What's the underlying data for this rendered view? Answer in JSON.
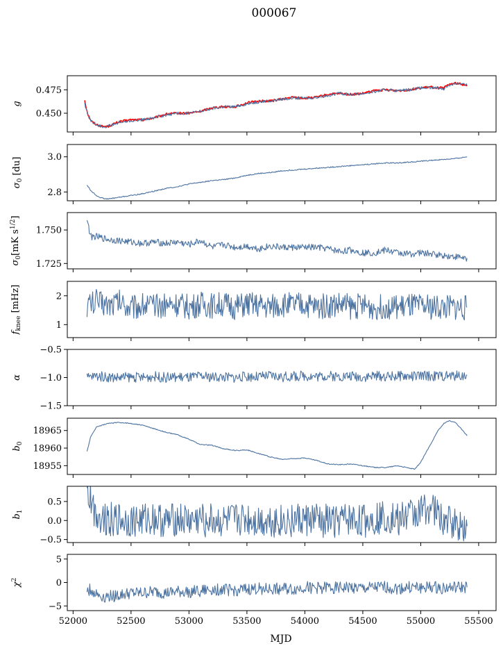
{
  "figure": {
    "title": "000067",
    "xlabel": "MJD"
  },
  "colors": {
    "series": "#4c72a0",
    "fit": "#ff0000",
    "axes": "#000000",
    "background": "#ffffff"
  },
  "chart_data": [
    {
      "type": "line",
      "ylabel": "g",
      "ylabel_sub": "",
      "ylabel_sup": "",
      "ylabel_suffix": "",
      "xlim": [
        51950,
        55650
      ],
      "ylim": [
        0.43,
        0.49
      ],
      "yticks": [
        0.45,
        0.475
      ],
      "ytick_labels": [
        "0.450",
        "0.475"
      ],
      "grid": false,
      "series": [
        {
          "style": "fit",
          "x": [
            52100,
            52115,
            52130,
            52160,
            52200,
            52250,
            52300,
            52400,
            52500,
            52600,
            52700,
            52800,
            52900,
            53000,
            53100,
            53200,
            53300,
            53400,
            53500,
            53600,
            53700,
            53800,
            53900,
            54000,
            54100,
            54200,
            54300,
            54400,
            54500,
            54600,
            54700,
            54800,
            54900,
            55000,
            55100,
            55150,
            55200,
            55250,
            55300,
            55350,
            55400
          ],
          "y": [
            0.464,
            0.455,
            0.448,
            0.441,
            0.438,
            0.436,
            0.436,
            0.441,
            0.443,
            0.443,
            0.445,
            0.449,
            0.45,
            0.45,
            0.452,
            0.456,
            0.457,
            0.457,
            0.461,
            0.463,
            0.463,
            0.465,
            0.467,
            0.466,
            0.467,
            0.47,
            0.471,
            0.47,
            0.471,
            0.474,
            0.475,
            0.474,
            0.475,
            0.477,
            0.478,
            0.477,
            0.477,
            0.481,
            0.482,
            0.481,
            0.48
          ]
        },
        {
          "style": "series",
          "x": [
            52100,
            52130,
            52160,
            52200,
            52250,
            52300,
            52400,
            52500,
            52600,
            52700,
            52800,
            52900,
            53000,
            53100,
            53200,
            53300,
            53400,
            53500,
            53600,
            53700,
            53800,
            53900,
            54000,
            54100,
            54200,
            54300,
            54400,
            54500,
            54600,
            54700,
            54800,
            54900,
            55000,
            55100,
            55150,
            55200,
            55250,
            55300,
            55350,
            55400
          ],
          "y": [
            0.46,
            0.447,
            0.441,
            0.438,
            0.436,
            0.436,
            0.44,
            0.442,
            0.443,
            0.445,
            0.448,
            0.45,
            0.45,
            0.452,
            0.455,
            0.457,
            0.457,
            0.46,
            0.462,
            0.463,
            0.465,
            0.466,
            0.466,
            0.467,
            0.469,
            0.471,
            0.47,
            0.471,
            0.473,
            0.475,
            0.474,
            0.475,
            0.477,
            0.477,
            0.477,
            0.476,
            0.48,
            0.482,
            0.481,
            0.48
          ]
        }
      ]
    },
    {
      "type": "line",
      "ylabel": "σ",
      "ylabel_sub": "0",
      "ylabel_sup": "",
      "ylabel_suffix": " [du]",
      "xlim": [
        51950,
        55650
      ],
      "ylim": [
        2.75,
        3.07
      ],
      "yticks": [
        2.8,
        3.0
      ],
      "ytick_labels": [
        "2.8",
        "3.0"
      ],
      "grid": false,
      "series": [
        {
          "style": "series",
          "x": [
            52120,
            52150,
            52200,
            52250,
            52300,
            52400,
            52500,
            52600,
            52700,
            52800,
            52900,
            53000,
            53100,
            53200,
            53300,
            53400,
            53500,
            53600,
            53700,
            53800,
            53900,
            54000,
            54100,
            54200,
            54300,
            54400,
            54500,
            54600,
            54700,
            54800,
            54900,
            55000,
            55100,
            55200,
            55300,
            55400
          ],
          "y": [
            2.84,
            2.81,
            2.78,
            2.765,
            2.76,
            2.77,
            2.78,
            2.79,
            2.805,
            2.82,
            2.83,
            2.845,
            2.855,
            2.865,
            2.87,
            2.88,
            2.895,
            2.905,
            2.91,
            2.92,
            2.925,
            2.93,
            2.935,
            2.94,
            2.945,
            2.95,
            2.955,
            2.96,
            2.965,
            2.965,
            2.97,
            2.975,
            2.98,
            2.985,
            2.99,
            3.0
          ]
        }
      ]
    },
    {
      "type": "line",
      "ylabel": "σ",
      "ylabel_sub": "0",
      "ylabel_sup": "",
      "ylabel_suffix": "[mK s",
      "ylabel_suffix_sup": "1/2",
      "ylabel_suffix_end": "]",
      "xlim": [
        51950,
        55650
      ],
      "ylim": [
        1.721,
        1.763
      ],
      "yticks": [
        1.725,
        1.75
      ],
      "ytick_labels": [
        "1.725",
        "1.750"
      ],
      "grid": false,
      "series": [
        {
          "style": "series",
          "x": [
            52120,
            52135,
            52150,
            52200,
            52300,
            52400,
            52500,
            52600,
            52700,
            52800,
            52900,
            53000,
            53100,
            53200,
            53300,
            53400,
            53500,
            53600,
            53700,
            53800,
            53900,
            54000,
            54100,
            54200,
            54300,
            54400,
            54500,
            54600,
            54700,
            54800,
            54900,
            55000,
            55100,
            55200,
            55300,
            55400
          ],
          "y": [
            1.759,
            1.752,
            1.745,
            1.745,
            1.743,
            1.742,
            1.741,
            1.74,
            1.741,
            1.74,
            1.741,
            1.739,
            1.742,
            1.737,
            1.739,
            1.737,
            1.738,
            1.736,
            1.738,
            1.737,
            1.737,
            1.737,
            1.737,
            1.736,
            1.734,
            1.735,
            1.733,
            1.733,
            1.735,
            1.733,
            1.732,
            1.733,
            1.732,
            1.731,
            1.73,
            1.729
          ]
        }
      ]
    },
    {
      "type": "line",
      "ylabel": "f",
      "ylabel_sub": "knee",
      "ylabel_sup": "",
      "ylabel_suffix": " [mHz]",
      "xlim": [
        51950,
        55650
      ],
      "ylim": [
        0.55,
        2.5
      ],
      "yticks": [
        1,
        2
      ],
      "ytick_labels": [
        "1",
        "2"
      ],
      "grid": false,
      "series": [
        {
          "style": "series",
          "x": [
            52120,
            52200,
            52300,
            52400,
            52500,
            52600,
            52700,
            52800,
            52900,
            53000,
            53100,
            53200,
            53300,
            53400,
            53500,
            53600,
            53700,
            53800,
            53900,
            54000,
            54100,
            54200,
            54300,
            54400,
            54500,
            54600,
            54700,
            54800,
            54900,
            55000,
            55100,
            55200,
            55300,
            55400
          ],
          "y": [
            1.7,
            1.8,
            1.7,
            1.8,
            1.6,
            1.7,
            1.6,
            1.7,
            1.7,
            1.6,
            1.7,
            1.65,
            1.7,
            1.6,
            1.7,
            1.65,
            1.6,
            1.7,
            1.65,
            1.7,
            1.6,
            1.65,
            1.7,
            1.6,
            1.65,
            1.6,
            1.65,
            1.6,
            1.65,
            1.6,
            1.6,
            1.6,
            1.6,
            1.6
          ]
        }
      ]
    },
    {
      "type": "line",
      "ylabel": "α",
      "ylabel_sub": "",
      "ylabel_sup": "",
      "ylabel_suffix": "",
      "xlim": [
        51950,
        55650
      ],
      "ylim": [
        -1.5,
        -0.5
      ],
      "yticks": [
        -1.5,
        -1.0,
        -0.5
      ],
      "ytick_labels": [
        "−1.5",
        "−1.0",
        "−0.5"
      ],
      "grid": false,
      "series": [
        {
          "style": "series",
          "x": [
            52120,
            52200,
            52300,
            52400,
            52500,
            52600,
            52700,
            52800,
            52900,
            53000,
            53100,
            53200,
            53300,
            53400,
            53500,
            53600,
            53700,
            53800,
            53900,
            54000,
            54100,
            54200,
            54300,
            54400,
            54500,
            54600,
            54700,
            54800,
            54900,
            55000,
            55100,
            55200,
            55300,
            55400
          ],
          "y": [
            -1.0,
            -0.97,
            -0.99,
            -1.0,
            -0.99,
            -1.0,
            -0.98,
            -1.0,
            -0.99,
            -1.0,
            -0.98,
            -0.99,
            -0.99,
            -1.0,
            -0.98,
            -0.99,
            -0.97,
            -0.99,
            -0.98,
            -0.97,
            -0.98,
            -0.97,
            -0.98,
            -0.97,
            -0.99,
            -0.97,
            -0.98,
            -0.97,
            -0.98,
            -0.97,
            -0.97,
            -0.97,
            -0.97,
            -0.96
          ]
        }
      ]
    },
    {
      "type": "line",
      "ylabel": "b",
      "ylabel_sub": "0",
      "ylabel_sup": "",
      "ylabel_suffix": "",
      "xlim": [
        51950,
        55650
      ],
      "ylim": [
        18952.5,
        18968.5
      ],
      "yticks": [
        18955,
        18960,
        18965
      ],
      "ytick_labels": [
        "18955",
        "18960",
        "18965"
      ],
      "grid": false,
      "series": [
        {
          "style": "series",
          "x": [
            52120,
            52150,
            52200,
            52300,
            52400,
            52500,
            52600,
            52700,
            52800,
            52900,
            53000,
            53100,
            53200,
            53300,
            53400,
            53500,
            53600,
            53700,
            53800,
            53900,
            54000,
            54100,
            54200,
            54300,
            54400,
            54500,
            54600,
            54700,
            54800,
            54900,
            54950,
            55000,
            55050,
            55100,
            55150,
            55200,
            55250,
            55300,
            55350,
            55400
          ],
          "y": [
            18959,
            18963,
            18966,
            18967,
            18967.3,
            18967,
            18966.5,
            18965.5,
            18964.5,
            18963.8,
            18962.5,
            18961,
            18960.8,
            18959.8,
            18959.3,
            18959.5,
            18958.5,
            18957.5,
            18956.8,
            18957,
            18957.2,
            18956.5,
            18955.5,
            18955.3,
            18955.5,
            18955,
            18954.5,
            18954.5,
            18955,
            18954.3,
            18954,
            18956,
            18959,
            18962,
            18965,
            18967,
            18967.8,
            18967.2,
            18965.5,
            18963.5
          ]
        }
      ]
    },
    {
      "type": "line",
      "ylabel": "b",
      "ylabel_sub": "1",
      "ylabel_sup": "",
      "ylabel_suffix": "",
      "xlim": [
        51950,
        55650
      ],
      "ylim": [
        -0.58,
        0.9
      ],
      "yticks": [
        -0.5,
        0.0,
        0.5
      ],
      "ytick_labels": [
        "−0.5",
        "0.0",
        "0.5"
      ],
      "grid": false,
      "series": [
        {
          "style": "series",
          "x": [
            52120,
            52150,
            52200,
            52300,
            52400,
            52500,
            52600,
            52700,
            52800,
            52900,
            53000,
            53100,
            53200,
            53300,
            53400,
            53500,
            53600,
            53700,
            53800,
            53900,
            54000,
            54100,
            54200,
            54300,
            54400,
            54500,
            54600,
            54700,
            54800,
            54900,
            55000,
            55050,
            55100,
            55150,
            55200,
            55300,
            55400
          ],
          "y": [
            0.75,
            0.55,
            0.15,
            0.05,
            0.02,
            -0.02,
            0.0,
            0.05,
            -0.05,
            0.03,
            -0.02,
            0.02,
            0.0,
            -0.05,
            0.0,
            0.03,
            -0.02,
            0.0,
            -0.03,
            0.02,
            0.0,
            0.02,
            -0.02,
            0.0,
            0.02,
            -0.03,
            0.05,
            0.1,
            0.05,
            0.15,
            0.2,
            0.35,
            0.3,
            0.15,
            0.05,
            -0.1,
            -0.15
          ]
        }
      ]
    },
    {
      "type": "line",
      "ylabel": "χ",
      "ylabel_sub": "",
      "ylabel_sup": "2",
      "ylabel_suffix": "",
      "xlim": [
        51950,
        55650
      ],
      "ylim": [
        -6,
        6
      ],
      "yticks": [
        -5,
        0,
        5
      ],
      "ytick_labels": [
        "−5",
        "0",
        "5"
      ],
      "xticks": [
        52000,
        52500,
        53000,
        53500,
        54000,
        54500,
        55000,
        55500
      ],
      "xtick_labels": [
        "52000",
        "52500",
        "53000",
        "53500",
        "54000",
        "54500",
        "55000",
        "55500"
      ],
      "grid": false,
      "series": [
        {
          "style": "series",
          "x": [
            52120,
            52150,
            52200,
            52250,
            52300,
            52400,
            52500,
            52600,
            52700,
            52800,
            52900,
            53000,
            53100,
            53200,
            53300,
            53400,
            53500,
            53600,
            53700,
            53800,
            53900,
            54000,
            54100,
            54200,
            54300,
            54400,
            54500,
            54600,
            54700,
            54800,
            54900,
            55000,
            55100,
            55200,
            55300,
            55400
          ],
          "y": [
            -2.0,
            -1.5,
            -2.5,
            -3.0,
            -3.0,
            -2.7,
            -2.3,
            -2.3,
            -2.0,
            -2.3,
            -2.0,
            -2.0,
            -1.8,
            -1.5,
            -1.5,
            -1.7,
            -1.5,
            -1.3,
            -1.5,
            -1.3,
            -1.5,
            -1.0,
            -1.2,
            -1.0,
            -1.2,
            -1.0,
            -1.3,
            -1.1,
            -1.0,
            -1.3,
            -1.0,
            -1.1,
            -1.0,
            -1.2,
            -1.1,
            -1.0
          ]
        }
      ]
    }
  ]
}
